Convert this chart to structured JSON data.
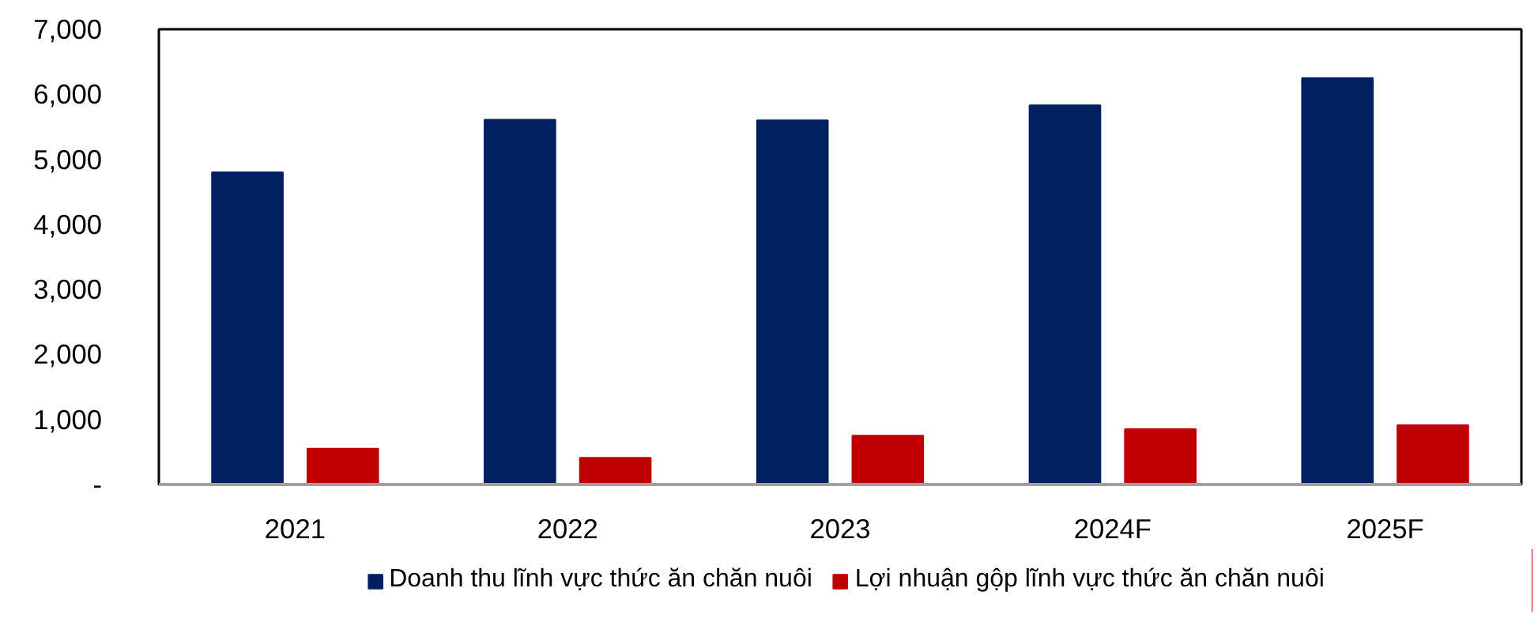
{
  "chart_data": {
    "type": "bar",
    "categories": [
      "2021",
      "2022",
      "2023",
      "2024F",
      "2025F"
    ],
    "series": [
      {
        "name": "Doanh thu lĩnh vực thức ăn chăn nuôi",
        "color": "#012060",
        "values": [
          4800,
          5610,
          5600,
          5830,
          6250
        ]
      },
      {
        "name": "Lợi nhuận gộp lĩnh vực thức ăn chăn nuôi",
        "color": "#c00000",
        "values": [
          550,
          410,
          750,
          850,
          910
        ]
      }
    ],
    "ylim": [
      0,
      7000
    ],
    "yticks": [
      {
        "value": 0,
        "label": "-"
      },
      {
        "value": 1000,
        "label": "1,000"
      },
      {
        "value": 2000,
        "label": "2,000"
      },
      {
        "value": 3000,
        "label": "3,000"
      },
      {
        "value": 4000,
        "label": "4,000"
      },
      {
        "value": 5000,
        "label": "5,000"
      },
      {
        "value": 6000,
        "label": "6,000"
      },
      {
        "value": 7000,
        "label": "7,000"
      }
    ],
    "grid": false,
    "legend": "bottom"
  }
}
